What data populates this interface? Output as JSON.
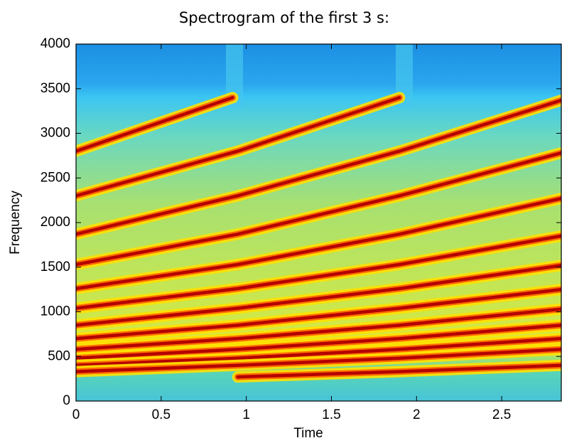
{
  "chart_data": {
    "type": "spectrogram",
    "title": "Spectrogram of the first 3 s:",
    "xlabel": "Time",
    "ylabel": "Frequency",
    "xlim": [
      0,
      2.85
    ],
    "xticks": [
      0,
      0.5,
      1,
      1.5,
      2,
      2.5
    ],
    "ylim": [
      0,
      4000
    ],
    "yticks": [
      0,
      500,
      1000,
      1500,
      2000,
      2500,
      3000,
      3500,
      4000
    ],
    "color": "#b40000",
    "series": [
      {
        "x": [
          0,
          0.92
        ],
        "values": [
          2800,
          3400
        ]
      },
      {
        "x": [
          0,
          0.95,
          1.9
        ],
        "values": [
          2300,
          2800,
          3400
        ]
      },
      {
        "x": [
          0,
          0.95,
          1.9,
          2.85
        ],
        "values": [
          1870,
          2300,
          2800,
          3370
        ]
      },
      {
        "x": [
          0,
          0.95,
          1.9,
          2.85
        ],
        "values": [
          1530,
          1870,
          2300,
          2780
        ]
      },
      {
        "x": [
          0,
          0.95,
          1.9,
          2.85
        ],
        "values": [
          1260,
          1530,
          1870,
          2270
        ]
      },
      {
        "x": [
          0,
          0.95,
          1.9,
          2.85
        ],
        "values": [
          1040,
          1260,
          1530,
          1850
        ]
      },
      {
        "x": [
          0,
          0.95,
          1.9,
          2.85
        ],
        "values": [
          850,
          1040,
          1260,
          1520
        ]
      },
      {
        "x": [
          0,
          0.95,
          1.9,
          2.85
        ],
        "values": [
          700,
          850,
          1040,
          1250
        ]
      },
      {
        "x": [
          0,
          0.95,
          1.9,
          2.85
        ],
        "values": [
          580,
          700,
          850,
          1030
        ]
      },
      {
        "x": [
          0,
          0.95,
          1.9,
          2.85
        ],
        "values": [
          480,
          580,
          700,
          850
        ]
      },
      {
        "x": [
          0,
          0.95,
          1.9,
          2.85
        ],
        "values": [
          400,
          480,
          580,
          700
        ]
      },
      {
        "x": [
          0,
          0.95,
          1.9,
          2.85
        ],
        "values": [
          330,
          400,
          480,
          580
        ]
      },
      {
        "x": [
          0.95,
          1.9,
          2.85
        ],
        "values": [
          270,
          330,
          400
        ]
      }
    ]
  }
}
